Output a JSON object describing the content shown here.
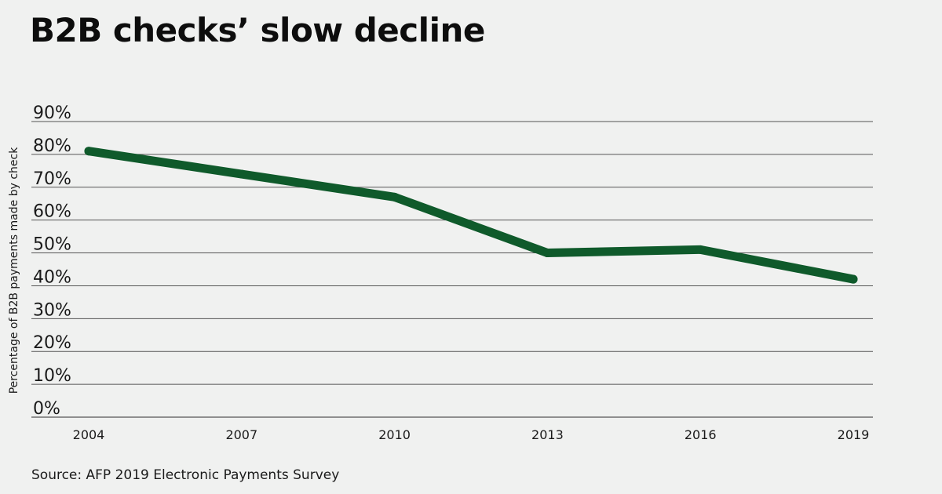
{
  "title": "B2B checks’ slow decline",
  "source": "Source: AFP 2019 Electronic Payments Survey",
  "colors": {
    "line": "#0f5a2b",
    "grid": "#555555",
    "background": "#f0f1f0"
  },
  "chart_data": {
    "type": "line",
    "title": "B2B checks’ slow decline",
    "xlabel": "",
    "ylabel": "Percentage of B2B payments made by check",
    "x": [
      "2004",
      "2007",
      "2010",
      "2013",
      "2016",
      "2019"
    ],
    "series": [
      {
        "values": [
          81,
          74,
          67,
          50,
          51,
          42
        ]
      }
    ],
    "ylim": [
      0,
      90
    ],
    "yticks": [
      0,
      10,
      20,
      30,
      40,
      50,
      60,
      70,
      80,
      90
    ],
    "ytick_labels": [
      "0%",
      "10%",
      "20%",
      "30%",
      "40%",
      "50%",
      "60%",
      "70%",
      "80%",
      "90%"
    ],
    "grid": true,
    "legend": "none"
  }
}
